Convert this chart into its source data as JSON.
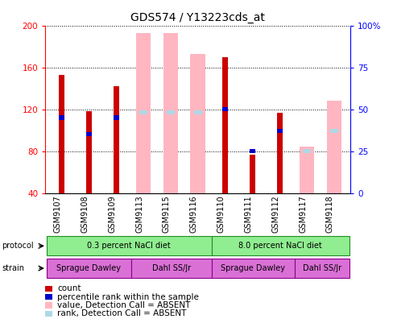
{
  "title": "GDS574 / Y13223cds_at",
  "samples": [
    "GSM9107",
    "GSM9108",
    "GSM9109",
    "GSM9113",
    "GSM9115",
    "GSM9116",
    "GSM9110",
    "GSM9111",
    "GSM9112",
    "GSM9117",
    "GSM9118"
  ],
  "ylim_left": [
    40,
    200
  ],
  "ylim_right": [
    0,
    100
  ],
  "yticks_left": [
    40,
    80,
    120,
    160,
    200
  ],
  "yticks_right": [
    0,
    25,
    50,
    75,
    100
  ],
  "yticklabels_right": [
    "0",
    "25",
    "50",
    "75",
    "100%"
  ],
  "count_values": [
    153,
    118,
    142,
    null,
    null,
    null,
    170,
    77,
    117,
    null,
    null
  ],
  "rank_pct_values": [
    45,
    35,
    45,
    null,
    null,
    null,
    50,
    25,
    37,
    null,
    null
  ],
  "absent_value_values": [
    null,
    null,
    null,
    193,
    193,
    173,
    null,
    null,
    null,
    84,
    128
  ],
  "absent_rank_pct": [
    null,
    null,
    null,
    48,
    48,
    48,
    null,
    null,
    null,
    25,
    37
  ],
  "count_color": "#cc0000",
  "rank_color": "#0000cc",
  "absent_value_color": "#ffb6c1",
  "absent_rank_color": "#add8e6",
  "bar_width": 0.55,
  "protocol_bg": "#90ee90",
  "strain_bg": "#da70d6",
  "title_fontsize": 10,
  "tick_fontsize": 7.5,
  "legend_fontsize": 7.5,
  "label_fontsize": 7.0,
  "annot_fontsize": 7.0
}
